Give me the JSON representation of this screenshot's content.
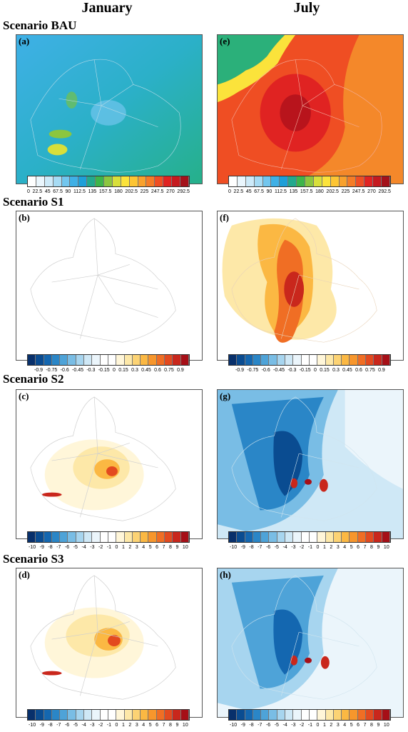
{
  "columns": [
    "January",
    "July"
  ],
  "scenarios": [
    "Scenario BAU",
    "Scenario S1",
    "Scenario S2",
    "Scenario S3"
  ],
  "panels": [
    "(a)",
    "(e)",
    "(b)",
    "(f)",
    "(c)",
    "(g)",
    "(d)",
    "(h)"
  ],
  "colorbars": {
    "bau": [
      "0",
      "22.5",
      "45",
      "67.5",
      "90",
      "112.5",
      "135",
      "157.5",
      "180",
      "202.5",
      "225",
      "247.5",
      "270",
      "292.5"
    ],
    "s1": [
      "-0.9",
      "-0.75",
      "-0.6",
      "-0.45",
      "-0.3",
      "-0.15",
      "0",
      "0.15",
      "0.3",
      "0.45",
      "0.6",
      "0.75",
      "0.9"
    ],
    "s23": [
      "-10",
      "-9",
      "-8",
      "-7",
      "-6",
      "-5",
      "-4",
      "-3",
      "-2",
      "-1",
      "0",
      "1",
      "2",
      "3",
      "4",
      "5",
      "6",
      "7",
      "8",
      "9",
      "10"
    ]
  },
  "colors": {
    "seq": [
      "#ffffff",
      "#eaf6fd",
      "#cdeaf9",
      "#a6dbf4",
      "#72c6ee",
      "#3fb0e6",
      "#1e9fd8",
      "#22a98d",
      "#3db54a",
      "#8cc63f",
      "#d8df3a",
      "#fbe33b",
      "#fdc533",
      "#f9a12c",
      "#f57c26",
      "#ef4e23",
      "#e02322",
      "#c51a1f",
      "#a4121b"
    ],
    "div": [
      "#08306b",
      "#0a4c91",
      "#1467b0",
      "#2a86c7",
      "#4ea3d8",
      "#79bde5",
      "#a7d5ef",
      "#cfe8f6",
      "#ebf5fb",
      "#ffffff",
      "#ffffff",
      "#fff6d9",
      "#fde8a8",
      "#fcd374",
      "#fbb843",
      "#f7962c",
      "#f06e24",
      "#e34a1f",
      "#c9271c",
      "#a60f17"
    ]
  }
}
